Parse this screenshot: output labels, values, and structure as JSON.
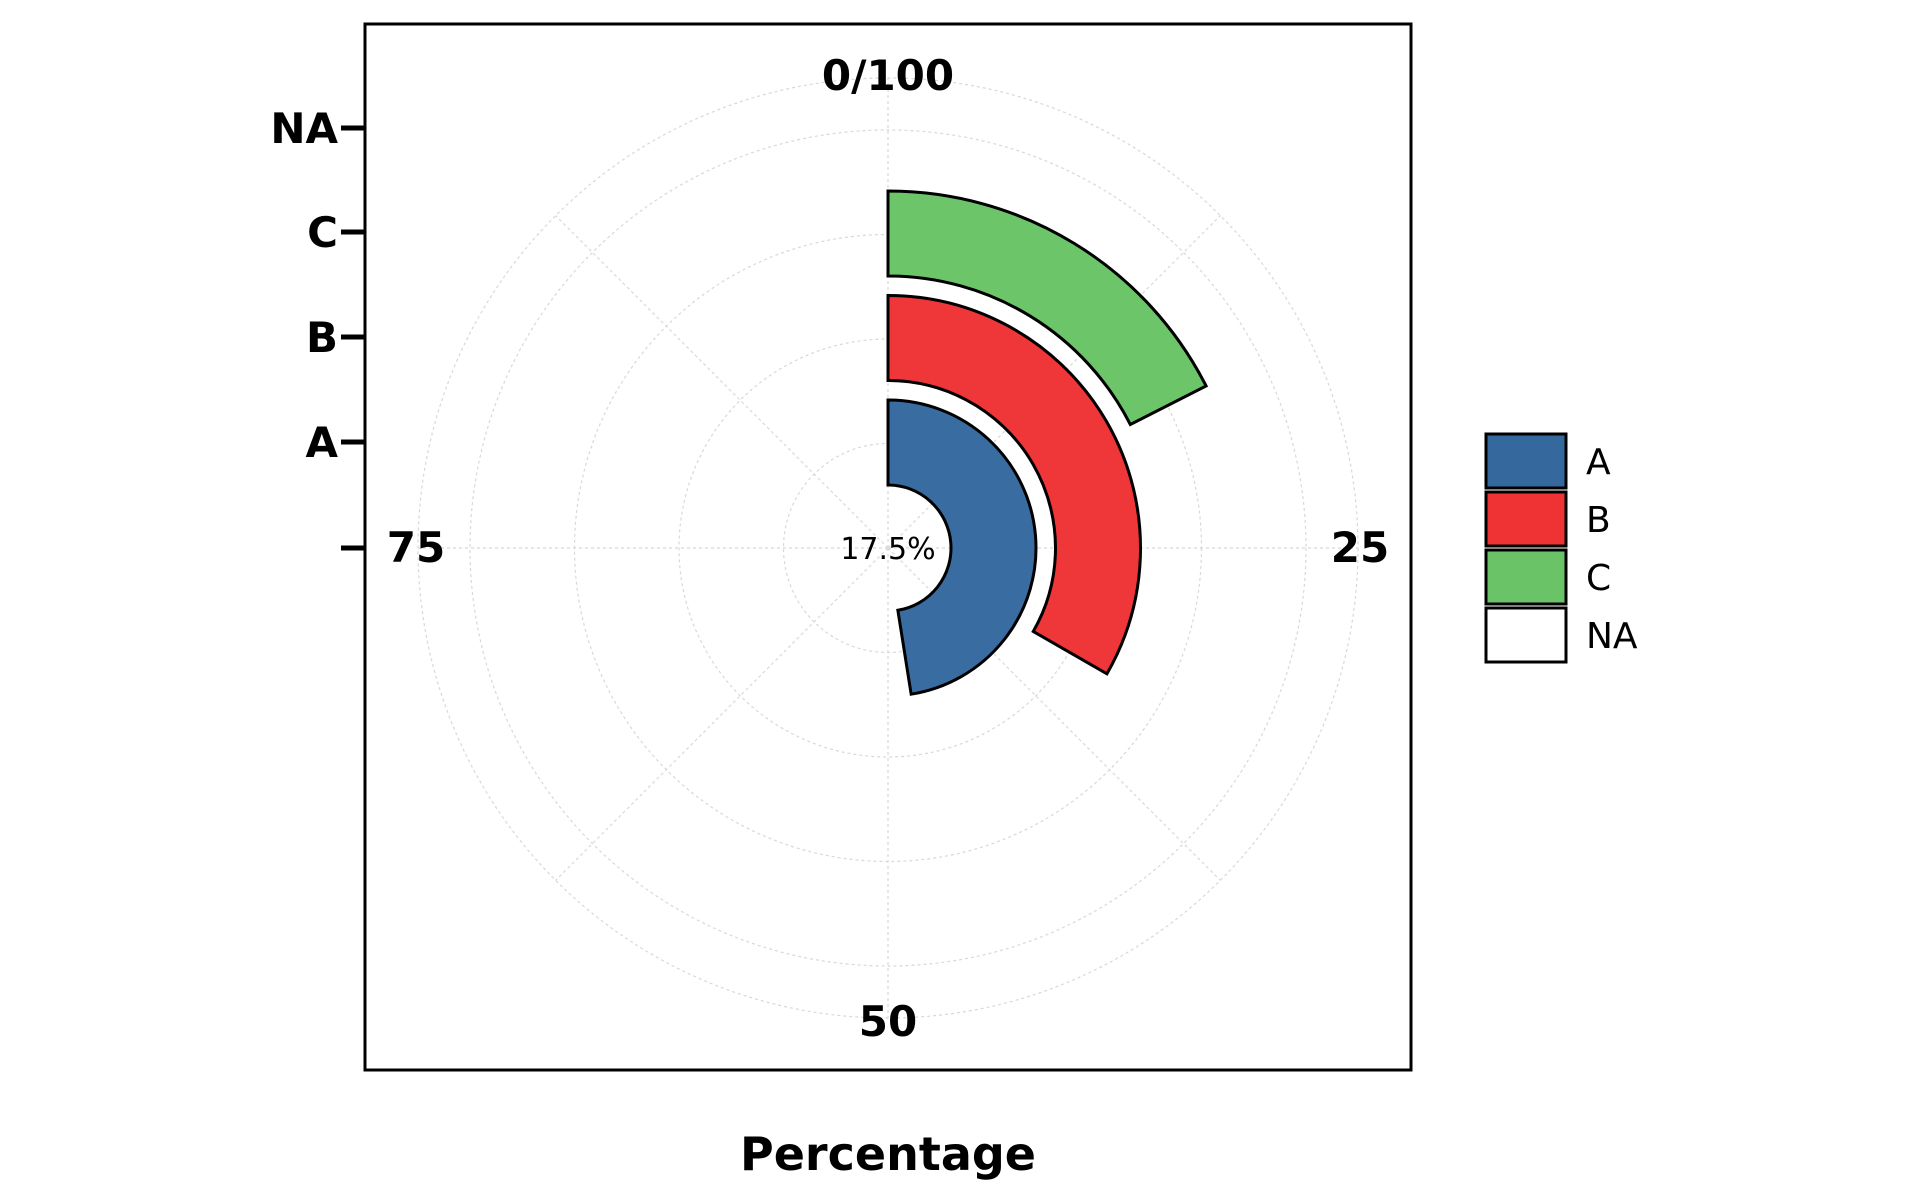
{
  "chart_data": {
    "type": "radial_bar",
    "title": "",
    "xlabel": "Percentage",
    "ylabel": "",
    "angular_axis": {
      "range": [
        0,
        100
      ],
      "ticks": [
        "0/100",
        "25",
        "50",
        "75"
      ],
      "direction": "clockwise",
      "zero_at": "top"
    },
    "radial_axis": {
      "categories": [
        "A",
        "B",
        "C",
        "NA"
      ]
    },
    "categories": [
      "A",
      "B",
      "C",
      "NA"
    ],
    "values": [
      47.5,
      33.3,
      17.5,
      0
    ],
    "center_label": "17.5%",
    "grid": true,
    "legend": {
      "placement": "right",
      "entries": [
        "A",
        "B",
        "C",
        "NA"
      ]
    },
    "colors": [
      "#35699e",
      "#ef3234",
      "#6ac467",
      "#ffffff"
    ]
  }
}
